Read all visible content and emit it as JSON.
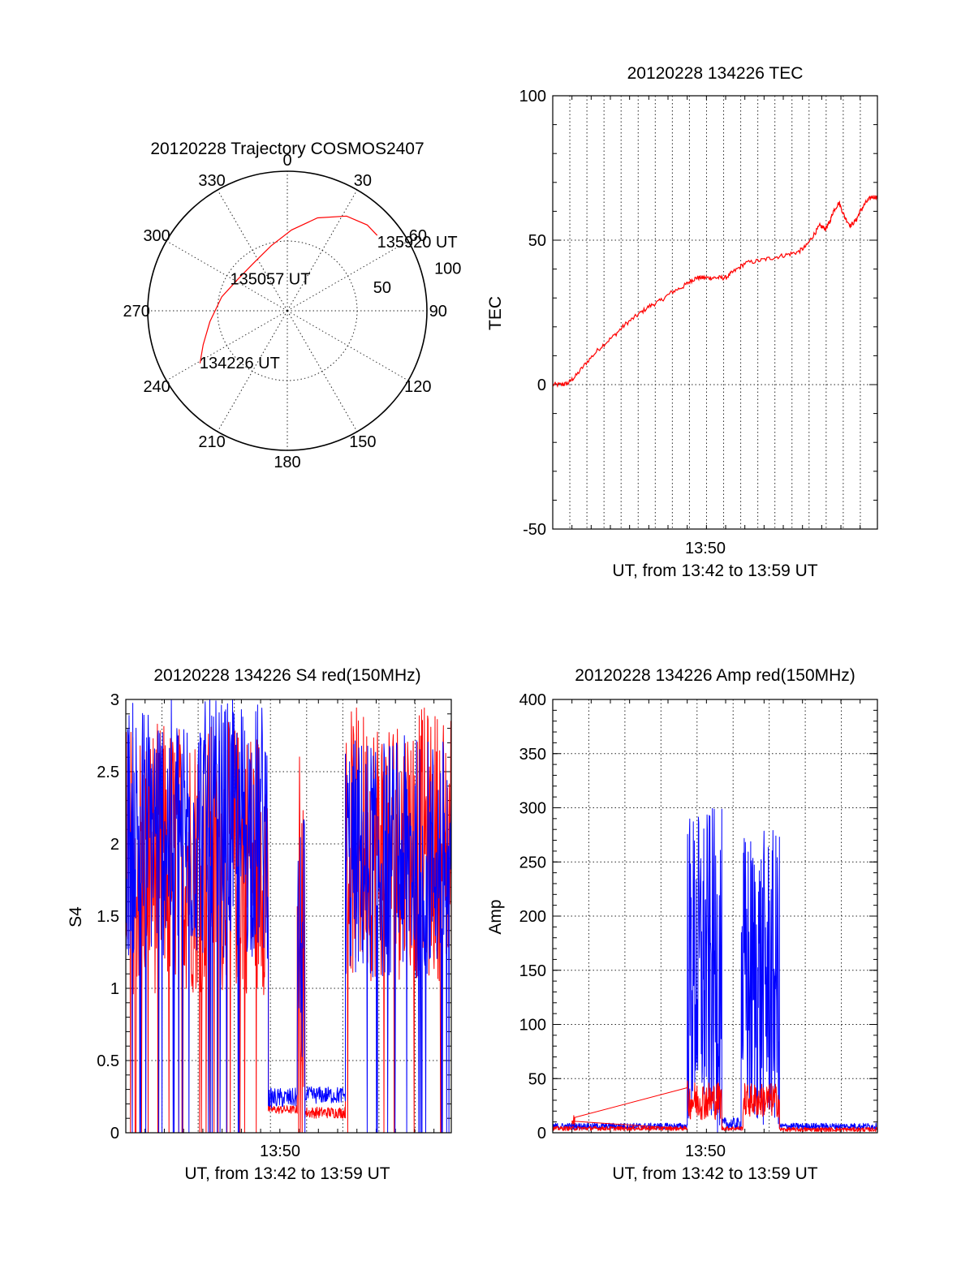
{
  "colors": {
    "red_series": "#ff0000",
    "blue_series": "#0000ff",
    "axes": "#000000"
  },
  "chart_data": [
    {
      "id": "trajectory",
      "type": "polar",
      "title": "20120228 Trajectory COSMOS2407",
      "azimuth_labels": [
        "0",
        "30",
        "60",
        "90",
        "120",
        "150",
        "180",
        "210",
        "240",
        "270",
        "300",
        "330"
      ],
      "radial_rings": [
        50,
        100
      ],
      "radial_labels": [
        "50",
        "100"
      ],
      "radial_max": 100,
      "grid": true,
      "annotations": [
        {
          "text": "134226 UT",
          "azimuth": 239,
          "radius": 72
        },
        {
          "text": "135057 UT",
          "azimuth": 300,
          "radius": 46
        },
        {
          "text": "135920 UT",
          "azimuth": 53,
          "radius": 82
        }
      ],
      "trajectory": {
        "color": "#ff0000",
        "points": [
          [
            239,
            73
          ],
          [
            248,
            65
          ],
          [
            262,
            56
          ],
          [
            282,
            48
          ],
          [
            303,
            42
          ],
          [
            326,
            42
          ],
          [
            346,
            48
          ],
          [
            3,
            58
          ],
          [
            18,
            70
          ],
          [
            32,
            80
          ],
          [
            43,
            84
          ],
          [
            50,
            84
          ]
        ]
      }
    },
    {
      "id": "tec",
      "type": "line",
      "title": "20120228 134226 TEC",
      "xlabel": "UT, from 13:42 to 13:59 UT",
      "ylabel": "TEC",
      "x_tick_label": "13:50",
      "xlim": [
        "13:42:26",
        "13:59:20"
      ],
      "ylim": [
        -50,
        100
      ],
      "yticks": [
        "-50",
        "0",
        "50",
        "100"
      ],
      "grid": true,
      "series": [
        {
          "color": "#ff0000",
          "x": [
            0,
            0.5,
            0.8,
            1.2,
            1.8,
            2.5,
            3.2,
            3.8,
            4.4,
            5.0,
            5.6,
            6.2,
            6.8,
            7.2,
            7.5,
            7.8,
            8.2,
            8.6,
            9.0,
            9.4,
            10.0,
            10.8,
            11.5,
            12.2,
            12.8,
            13.2,
            13.6,
            13.9,
            14.2,
            14.4,
            14.6,
            14.9,
            15.2,
            15.5,
            15.8,
            16.0,
            16.3,
            16.6,
            16.9
          ],
          "y": [
            0,
            0,
            0.5,
            3,
            8,
            13,
            17,
            21,
            24,
            27,
            29,
            32,
            34,
            36,
            37,
            37,
            37,
            37,
            37,
            39,
            42,
            43,
            44,
            45,
            46,
            48,
            52,
            55,
            54,
            56,
            60,
            63,
            58,
            55,
            57,
            60,
            63,
            65,
            65
          ]
        }
      ]
    },
    {
      "id": "s4",
      "type": "line",
      "title": "20120228 134226 S4 red(150MHz)",
      "xlabel": "UT, from 13:42 to 13:59 UT",
      "ylabel": "S4",
      "x_tick_label": "13:50",
      "xlim": [
        "13:42:26",
        "13:59:20"
      ],
      "ylim": [
        0,
        3
      ],
      "yticks": [
        "0",
        "0.5",
        "1",
        "1.5",
        "2",
        "2.5",
        "3"
      ],
      "grid": true,
      "series": [
        {
          "color": "#ff0000",
          "segments": [
            {
              "t_start": 0.0,
              "t_end": 7.4,
              "level": 1.9,
              "spread": 0.95
            },
            {
              "t_start": 7.4,
              "t_end": 8.9,
              "level": 0.16,
              "spread": 0.03
            },
            {
              "t_start": 8.9,
              "t_end": 9.3,
              "level": 1.5,
              "spread": 1.2
            },
            {
              "t_start": 9.3,
              "t_end": 11.4,
              "level": 0.14,
              "spread": 0.04
            },
            {
              "t_start": 11.4,
              "t_end": 16.9,
              "level": 2.0,
              "spread": 0.95
            }
          ]
        },
        {
          "color": "#0000ff",
          "segments": [
            {
              "t_start": 0.0,
              "t_end": 7.4,
              "level": 2.1,
              "spread": 0.9
            },
            {
              "t_start": 7.4,
              "t_end": 8.9,
              "level": 0.24,
              "spread": 0.07
            },
            {
              "t_start": 8.9,
              "t_end": 9.3,
              "level": 1.3,
              "spread": 0.9
            },
            {
              "t_start": 9.3,
              "t_end": 11.4,
              "level": 0.26,
              "spread": 0.06
            },
            {
              "t_start": 11.4,
              "t_end": 16.9,
              "level": 1.9,
              "spread": 0.85
            }
          ]
        }
      ]
    },
    {
      "id": "amp",
      "type": "line",
      "title": "20120228 134226 Amp red(150MHz)",
      "xlabel": "UT, from 13:42 to 13:59 UT",
      "ylabel": "Amp",
      "x_tick_label": "13:50",
      "xlim": [
        "13:42:26",
        "13:59:20"
      ],
      "ylim": [
        0,
        400
      ],
      "yticks": [
        "0",
        "50",
        "100",
        "150",
        "200",
        "250",
        "300",
        "350",
        "400"
      ],
      "grid": true,
      "series": [
        {
          "color": "#ff0000",
          "segments": [
            {
              "t_start": 0.0,
              "t_end": 7.0,
              "level": 4,
              "spread": 2
            },
            {
              "t_start": 1.0,
              "t_end": 1.15,
              "level": 12,
              "spread": 5
            },
            {
              "t_start": 7.0,
              "t_end": 8.8,
              "level": 30,
              "spread": 18
            },
            {
              "t_start": 8.8,
              "t_end": 9.9,
              "level": 4,
              "spread": 2
            },
            {
              "t_start": 9.9,
              "t_end": 11.8,
              "level": 30,
              "spread": 16
            },
            {
              "t_start": 11.8,
              "t_end": 16.9,
              "level": 3,
              "spread": 2
            }
          ]
        },
        {
          "color": "#0000ff",
          "segments": [
            {
              "t_start": 0.0,
              "t_end": 7.0,
              "level": 6,
              "spread": 3
            },
            {
              "t_start": 7.0,
              "t_end": 8.8,
              "level": 150,
              "spread": 150
            },
            {
              "t_start": 8.8,
              "t_end": 9.8,
              "level": 8,
              "spread": 6
            },
            {
              "t_start": 9.8,
              "t_end": 11.8,
              "level": 140,
              "spread": 140
            },
            {
              "t_start": 11.8,
              "t_end": 16.9,
              "level": 6,
              "spread": 3
            }
          ]
        }
      ]
    }
  ]
}
